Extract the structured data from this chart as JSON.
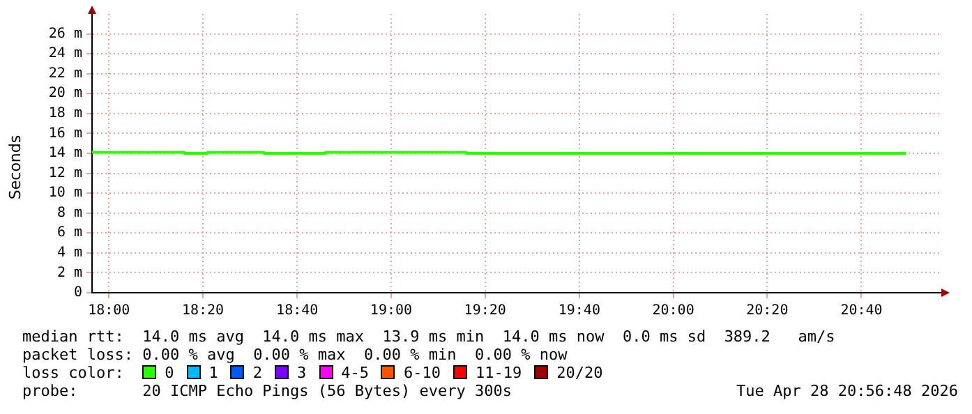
{
  "chart_data": {
    "type": "step",
    "ylabel": "Seconds",
    "x": [
      17.94,
      18.267,
      18.35,
      18.55,
      18.767,
      19.267,
      19.85,
      20.825
    ],
    "series": [
      {
        "name": "0",
        "color": "#26ff00",
        "values": [
          14.0,
          14.1,
          14.0,
          14.1,
          14.0,
          14.1,
          14.0,
          14.0
        ]
      },
      {
        "name": "1",
        "color": "#00b8ff",
        "values": [
          null,
          null,
          null,
          null,
          null,
          null,
          null,
          null
        ]
      },
      {
        "name": "2",
        "color": "#0059ff",
        "values": [
          null,
          null,
          null,
          null,
          null,
          null,
          null,
          null
        ]
      },
      {
        "name": "3",
        "color": "#7e00ff",
        "values": [
          null,
          null,
          null,
          null,
          null,
          null,
          null,
          null
        ]
      },
      {
        "name": "4-5",
        "color": "#ff00ff",
        "values": [
          null,
          null,
          null,
          null,
          null,
          null,
          null,
          null
        ]
      },
      {
        "name": "6-10",
        "color": "#ff5500",
        "values": [
          null,
          null,
          null,
          null,
          null,
          null,
          null,
          null
        ]
      },
      {
        "name": "11-19",
        "color": "#ff0000",
        "values": [
          null,
          null,
          null,
          null,
          null,
          null,
          null,
          null
        ]
      },
      {
        "name": "20/20",
        "color": "#a10000",
        "values": [
          null,
          null,
          null,
          null,
          null,
          null,
          null,
          null
        ]
      }
    ],
    "xlim": [
      17.94,
      20.95
    ],
    "xticks": [
      {
        "value": 18,
        "label": "18:00"
      },
      {
        "value": 18.333,
        "label": "18:20"
      },
      {
        "value": 18.667,
        "label": "18:40"
      },
      {
        "value": 19,
        "label": "19:00"
      },
      {
        "value": 19.333,
        "label": "19:20"
      },
      {
        "value": 19.667,
        "label": "19:40"
      },
      {
        "value": 20,
        "label": "20:00"
      },
      {
        "value": 20.333,
        "label": "20:20"
      },
      {
        "value": 20.667,
        "label": "20:40"
      }
    ],
    "ylim": [
      0,
      28
    ],
    "yticks": [
      0,
      {
        "value": 2,
        "label": "2 m"
      },
      {
        "value": 4,
        "label": "4 m"
      },
      {
        "value": 6,
        "label": "6 m"
      },
      {
        "value": 8,
        "label": "8 m"
      },
      {
        "value": 10,
        "label": "10 m"
      },
      {
        "value": 12,
        "label": "12 m"
      },
      {
        "value": 14,
        "label": "14 m"
      },
      {
        "value": 16,
        "label": "16 m"
      },
      {
        "value": 18,
        "label": "18 m"
      },
      {
        "value": 20,
        "label": "20 m"
      },
      {
        "value": 22,
        "label": "22 m"
      },
      {
        "value": 24,
        "label": "24 m"
      },
      {
        "value": 26,
        "label": "26 m"
      }
    ],
    "grid": true,
    "legend": "bottom",
    "marker": "none",
    "line_style": "solid",
    "annotations": [
      "median rtt:  14.0 ms avg  14.0 ms max  13.9 ms min  14.0 ms now  0.0 ms sd  389.2   am/s",
      "packet loss: 0.00 % avg  0.00 % max  0.00 % min  0.00 % now",
      "loss color:",
      "probe:       20 ICMP Echo Pings (56 Bytes) every 300s",
      "Tue Apr 28 20:56:48 2026"
    ]
  }
}
